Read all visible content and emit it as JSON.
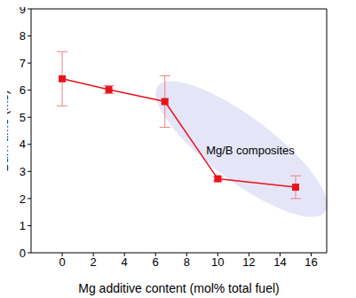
{
  "chart_data": {
    "type": "line",
    "x_label": "Mg additive content (mol% total fuel)",
    "y_label": "Burn time (ms)",
    "annotation": "Mg/B composites",
    "x": [
      0,
      3,
      6.6,
      10,
      15
    ],
    "values": [
      6.42,
      6.02,
      5.58,
      2.73,
      2.42
    ],
    "errors": [
      1.0,
      0.15,
      0.95,
      0.08,
      0.42
    ],
    "color": "#e8141c",
    "marker": "square",
    "line_style": "solid",
    "xlim": [
      -2,
      17
    ],
    "ylim": [
      0,
      9
    ],
    "xticks": [
      0,
      2,
      4,
      6,
      8,
      10,
      12,
      14,
      16
    ],
    "yticks": [
      0,
      1,
      2,
      3,
      4,
      5,
      6,
      7,
      8,
      9
    ],
    "grid": false
  }
}
